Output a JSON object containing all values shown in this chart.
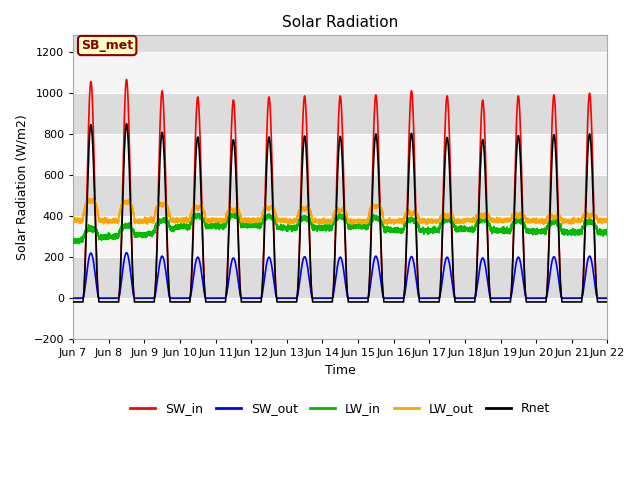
{
  "title": "Solar Radiation",
  "ylabel": "Solar Radiation (W/m2)",
  "xlabel": "Time",
  "ylim": [
    -200,
    1280
  ],
  "yticks": [
    -200,
    0,
    200,
    400,
    600,
    800,
    1000,
    1200
  ],
  "n_days": 15,
  "annotation_text": "SB_met",
  "annotation_bg": "#FFFFC0",
  "annotation_border": "#8B0000",
  "plot_bg_color": "#DCDCDC",
  "fig_bg_color": "#FFFFFF",
  "series": {
    "SW_in": {
      "color": "#FF0000",
      "lw": 1.2,
      "label": "SW_in"
    },
    "SW_out": {
      "color": "#0000FF",
      "lw": 1.2,
      "label": "SW_out"
    },
    "LW_in": {
      "color": "#00BB00",
      "lw": 1.2,
      "label": "LW_in"
    },
    "LW_out": {
      "color": "#FFA500",
      "lw": 1.2,
      "label": "LW_out"
    },
    "Rnet": {
      "color": "#000000",
      "lw": 1.2,
      "label": "Rnet"
    }
  },
  "legend_entries": [
    "SW_in",
    "SW_out",
    "LW_in",
    "LW_out",
    "Rnet"
  ],
  "legend_colors": [
    "#FF0000",
    "#0000FF",
    "#00BB00",
    "#FFA500",
    "#000000"
  ],
  "xticklabels": [
    "Jun 7",
    "Jun 8",
    "Jun 9",
    "Jun 10",
    "Jun 11",
    "Jun 12",
    "Jun 13",
    "Jun 14",
    "Jun 15",
    "Jun 16",
    "Jun 17",
    "Jun 18",
    "Jun 19",
    "Jun 20",
    "Jun 21",
    "Jun 22"
  ],
  "xtick_positions": [
    0,
    1,
    2,
    3,
    4,
    5,
    6,
    7,
    8,
    9,
    10,
    11,
    12,
    13,
    14,
    15
  ]
}
